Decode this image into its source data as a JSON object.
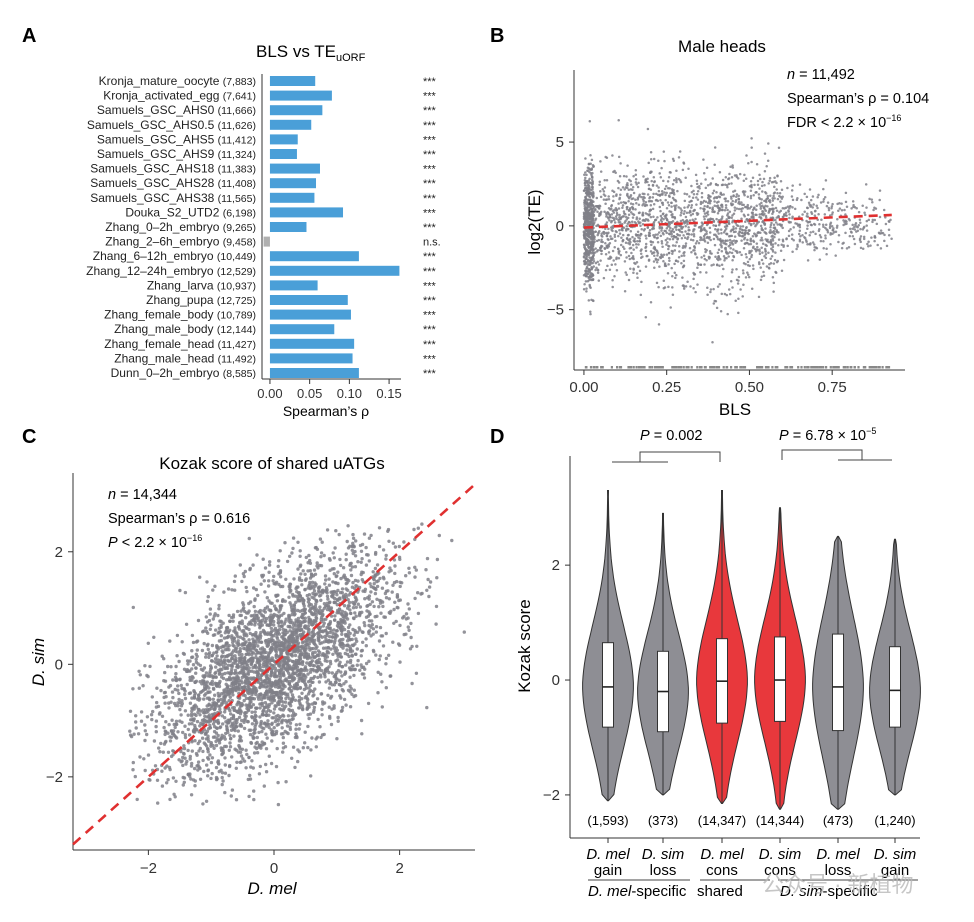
{
  "figure": {
    "panel_labels": [
      "A",
      "B",
      "C",
      "D"
    ],
    "watermark": "公众号 · 新植物"
  },
  "chart_data": [
    {
      "panel": "A",
      "type": "bar",
      "orientation": "horizontal",
      "title_main": "BLS vs TE",
      "title_sub": "uORF",
      "xlabel": "Spearman’s ρ",
      "xticks": [
        "0.00",
        "0.05",
        "0.10",
        "0.15"
      ],
      "xlim": [
        -0.01,
        0.165
      ],
      "color": "#4a9fd8",
      "ns_color": "#b0b0b0",
      "categories": [
        {
          "label": "Kronja_mature_oocyte",
          "n": "(7,883)",
          "value": 0.057,
          "sig": "***"
        },
        {
          "label": "Kronja_activated_egg",
          "n": "(7,641)",
          "value": 0.078,
          "sig": "***"
        },
        {
          "label": "Samuels_GSC_AHS0",
          "n": "(11,666)",
          "value": 0.066,
          "sig": "***"
        },
        {
          "label": "Samuels_GSC_AHS0.5",
          "n": "(11,626)",
          "value": 0.052,
          "sig": "***"
        },
        {
          "label": "Samuels_GSC_AHS5",
          "n": "(11,412)",
          "value": 0.035,
          "sig": "***"
        },
        {
          "label": "Samuels_GSC_AHS9",
          "n": "(11,324)",
          "value": 0.034,
          "sig": "***"
        },
        {
          "label": "Samuels_GSC_AHS18",
          "n": "(11,383)",
          "value": 0.063,
          "sig": "***"
        },
        {
          "label": "Samuels_GSC_AHS28",
          "n": "(11,408)",
          "value": 0.058,
          "sig": "***"
        },
        {
          "label": "Samuels_GSC_AHS38",
          "n": "(11,565)",
          "value": 0.056,
          "sig": "***"
        },
        {
          "label": "Douka_S2_UTD2",
          "n": "(6,198)",
          "value": 0.092,
          "sig": "***"
        },
        {
          "label": "Zhang_0–2h_embryo",
          "n": "(9,265)",
          "value": 0.046,
          "sig": "***"
        },
        {
          "label": "Zhang_2–6h_embryo",
          "n": "(9,458)",
          "value": -0.008,
          "sig": "n.s."
        },
        {
          "label": "Zhang_6–12h_embryo",
          "n": "(10,449)",
          "value": 0.112,
          "sig": "***"
        },
        {
          "label": "Zhang_12–24h_embryo",
          "n": "(12,529)",
          "value": 0.163,
          "sig": "***"
        },
        {
          "label": "Zhang_larva",
          "n": "(10,937)",
          "value": 0.06,
          "sig": "***"
        },
        {
          "label": "Zhang_pupa",
          "n": "(12,725)",
          "value": 0.098,
          "sig": "***"
        },
        {
          "label": "Zhang_female_body",
          "n": "(10,789)",
          "value": 0.102,
          "sig": "***"
        },
        {
          "label": "Zhang_male_body",
          "n": "(12,144)",
          "value": 0.081,
          "sig": "***"
        },
        {
          "label": "Zhang_female_head",
          "n": "(11,427)",
          "value": 0.106,
          "sig": "***"
        },
        {
          "label": "Zhang_male_head",
          "n": "(11,492)",
          "value": 0.104,
          "sig": "***"
        },
        {
          "label": "Dunn_0–2h_embryo",
          "n": "(8,585)",
          "value": 0.112,
          "sig": "***"
        }
      ]
    },
    {
      "panel": "B",
      "type": "scatter",
      "title": "Male heads",
      "xlabel": "BLS",
      "ylabel": "log2(TE)",
      "xlim": [
        -0.03,
        0.97
      ],
      "ylim": [
        -8.6,
        9.3
      ],
      "xticks": [
        0,
        0.25,
        0.5,
        0.75
      ],
      "xtick_labels": [
        "0.00",
        "0.25",
        "0.50",
        "0.75"
      ],
      "yticks": [
        -5,
        0,
        5
      ],
      "ytick_labels": [
        "−5",
        "0",
        "5"
      ],
      "point_color": "#808088",
      "trend": {
        "x": [
          0,
          0.93
        ],
        "y": [
          -0.1,
          0.65
        ],
        "color": "#e03030"
      },
      "stats": {
        "n_label": "n",
        "n_value": " = 11,492",
        "rho_text": "Spearman’s ρ = 0.104",
        "fdr_text": "FDR < 2.2 × 10",
        "fdr_exp": "−16"
      }
    },
    {
      "panel": "C",
      "type": "scatter",
      "title": "Kozak score of shared uATGs",
      "xlabel": "D. mel",
      "ylabel": "D. sim",
      "xlim": [
        -3.2,
        3.2
      ],
      "ylim": [
        -3.3,
        3.4
      ],
      "xticks": [
        -2,
        0,
        2
      ],
      "xtick_labels": [
        "−2",
        "0",
        "2"
      ],
      "yticks": [
        -2,
        0,
        2
      ],
      "ytick_labels": [
        "−2",
        "0",
        "2"
      ],
      "point_color": "#808088",
      "identity_line": {
        "color": "#e03030"
      },
      "stats": {
        "n_label": "n",
        "n_value": " = 14,344",
        "rho_text": "Spearman’s ρ = 0.616",
        "p_label": "P",
        "p_text": " < 2.2 × 10",
        "p_exp": "−16"
      }
    },
    {
      "panel": "D",
      "type": "violin",
      "ylabel": "Kozak score",
      "ylim": [
        -2.75,
        3.9
      ],
      "yticks": [
        -2,
        0,
        2
      ],
      "ytick_labels": [
        "−2",
        "0",
        "2"
      ],
      "groups": [
        {
          "species": "D. mel",
          "kind": "gain",
          "count": "(1,593)",
          "color": "#8e8e94",
          "min": -2.1,
          "q1": -0.82,
          "median": -0.12,
          "q3": 0.65,
          "max": 3.3
        },
        {
          "species": "D. sim",
          "kind": "loss",
          "count": "(373)",
          "color": "#8e8e94",
          "min": -2.0,
          "q1": -0.9,
          "median": -0.2,
          "q3": 0.5,
          "max": 2.9
        },
        {
          "species": "D. mel",
          "kind": "cons",
          "count": "(14,347)",
          "color": "#e8383c",
          "min": -2.15,
          "q1": -0.75,
          "median": -0.02,
          "q3": 0.72,
          "max": 3.3
        },
        {
          "species": "D. sim",
          "kind": "cons",
          "count": "(14,344)",
          "color": "#e8383c",
          "min": -2.25,
          "q1": -0.72,
          "median": 0.0,
          "q3": 0.75,
          "max": 3.0
        },
        {
          "species": "D. mel",
          "kind": "loss",
          "count": "(473)",
          "color": "#8e8e94",
          "min": -2.25,
          "q1": -0.88,
          "median": -0.12,
          "q3": 0.8,
          "max": 2.5
        },
        {
          "species": "D. sim",
          "kind": "gain",
          "count": "(1,240)",
          "color": "#8e8e94",
          "min": -2.0,
          "q1": -0.82,
          "median": -0.18,
          "q3": 0.58,
          "max": 2.45
        }
      ],
      "comparisons": [
        {
          "p_label": "P",
          "p_text": " = 0.002",
          "p_exp": ""
        },
        {
          "p_label": "P",
          "p_text": " = 6.78 × 10",
          "p_exp": "−5"
        }
      ],
      "group_labels": {
        "left_species": "D. mel",
        "left_suffix": "-specific",
        "middle": "shared",
        "right_species": "D. sim",
        "right_suffix": "-specific"
      }
    }
  ]
}
